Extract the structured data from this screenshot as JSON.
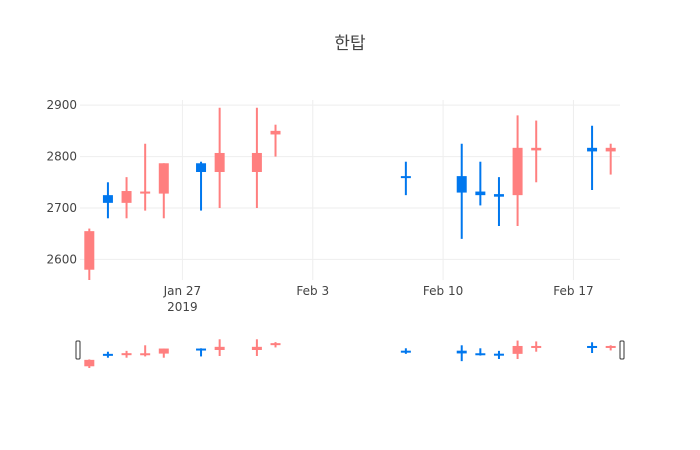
{
  "chart_data": {
    "type": "candlestick",
    "title": "한탑",
    "xlabel": "",
    "ylabel": "",
    "ylim": [
      2560,
      2910
    ],
    "xlim": [
      "2019-01-21T12:00",
      "2019-02-19T12:00"
    ],
    "yticks": [
      2600,
      2700,
      2800,
      2900
    ],
    "xticks": [
      {
        "date": "2019-01-27",
        "label": "Jan 27",
        "sublabel": "2019"
      },
      {
        "date": "2019-02-03",
        "label": "Feb 3",
        "sublabel": ""
      },
      {
        "date": "2019-02-10",
        "label": "Feb 10",
        "sublabel": ""
      },
      {
        "date": "2019-02-17",
        "label": "Feb 17",
        "sublabel": ""
      }
    ],
    "grid": true,
    "increasing_color": "#ff7f7f",
    "decreasing_color": "#0077ee",
    "range_slider": true,
    "candles": [
      {
        "date": "2019-01-22",
        "open": 2580,
        "high": 2660,
        "low": 2560,
        "close": 2655
      },
      {
        "date": "2019-01-23",
        "open": 2725,
        "high": 2750,
        "low": 2680,
        "close": 2710
      },
      {
        "date": "2019-01-24",
        "open": 2710,
        "high": 2760,
        "low": 2680,
        "close": 2733
      },
      {
        "date": "2019-01-25",
        "open": 2728,
        "high": 2825,
        "low": 2695,
        "close": 2732
      },
      {
        "date": "2019-01-26",
        "open": 2728,
        "high": 2787,
        "low": 2680,
        "close": 2787
      },
      {
        "date": "2019-01-28",
        "open": 2787,
        "high": 2790,
        "low": 2695,
        "close": 2770
      },
      {
        "date": "2019-01-29",
        "open": 2770,
        "high": 2895,
        "low": 2700,
        "close": 2807
      },
      {
        "date": "2019-01-31",
        "open": 2770,
        "high": 2895,
        "low": 2700,
        "close": 2807
      },
      {
        "date": "2019-02-01",
        "open": 2843,
        "high": 2862,
        "low": 2800,
        "close": 2850
      },
      {
        "date": "2019-02-08",
        "open": 2762,
        "high": 2790,
        "low": 2725,
        "close": 2760
      },
      {
        "date": "2019-02-11",
        "open": 2762,
        "high": 2825,
        "low": 2640,
        "close": 2730
      },
      {
        "date": "2019-02-12",
        "open": 2732,
        "high": 2790,
        "low": 2705,
        "close": 2725
      },
      {
        "date": "2019-02-13",
        "open": 2727,
        "high": 2760,
        "low": 2665,
        "close": 2722
      },
      {
        "date": "2019-02-14",
        "open": 2725,
        "high": 2880,
        "low": 2665,
        "close": 2817
      },
      {
        "date": "2019-02-15",
        "open": 2812,
        "high": 2870,
        "low": 2750,
        "close": 2817
      },
      {
        "date": "2019-02-18",
        "open": 2817,
        "high": 2860,
        "low": 2735,
        "close": 2810
      },
      {
        "date": "2019-02-19",
        "open": 2810,
        "high": 2825,
        "low": 2765,
        "close": 2817
      }
    ]
  }
}
